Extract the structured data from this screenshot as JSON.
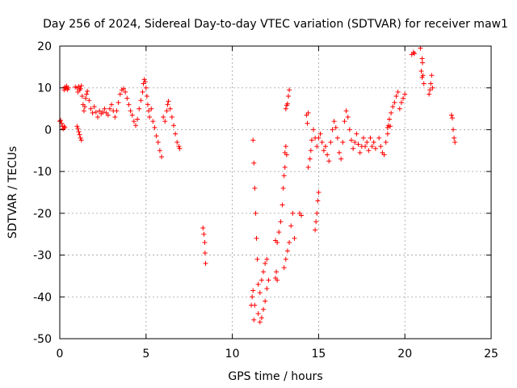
{
  "chart_data": {
    "type": "scatter",
    "title": "Day 256 of 2024, Sidereal Day-to-day VTEC variation (SDTVAR) for receiver maw1",
    "xlabel": "GPS time / hours",
    "ylabel": "SDTVAR / TECUs",
    "xlim": [
      0,
      25
    ],
    "ylim": [
      -50,
      20
    ],
    "xticks": [
      0,
      5,
      10,
      15,
      20,
      25
    ],
    "yticks": [
      -50,
      -40,
      -30,
      -20,
      -10,
      0,
      10,
      20
    ],
    "grid": true,
    "marker": "plus",
    "color": "#ff0000",
    "series": [
      {
        "name": "SDTVAR",
        "points": [
          [
            0.0,
            2.0
          ],
          [
            0.05,
            2.2
          ],
          [
            0.1,
            1.5
          ],
          [
            0.15,
            0.8
          ],
          [
            0.2,
            0.2
          ],
          [
            0.25,
            0.8
          ],
          [
            0.3,
            0.5
          ],
          [
            0.25,
            9.5
          ],
          [
            0.3,
            10.2
          ],
          [
            0.35,
            9.8
          ],
          [
            0.4,
            10.4
          ],
          [
            0.45,
            9.6
          ],
          [
            0.5,
            10.0
          ],
          [
            0.9,
            10.2
          ],
          [
            1.0,
            10.0
          ],
          [
            1.05,
            9.0
          ],
          [
            1.1,
            10.3
          ],
          [
            1.15,
            9.5
          ],
          [
            1.2,
            9.8
          ],
          [
            1.25,
            10.5
          ],
          [
            1.0,
            0.8
          ],
          [
            1.05,
            0.3
          ],
          [
            1.1,
            -0.5
          ],
          [
            1.15,
            -1.2
          ],
          [
            1.2,
            -2.0
          ],
          [
            1.25,
            -2.5
          ],
          [
            1.3,
            8.0
          ],
          [
            1.35,
            6.0
          ],
          [
            1.4,
            4.5
          ],
          [
            1.45,
            5.5
          ],
          [
            1.5,
            7.5
          ],
          [
            1.55,
            8.5
          ],
          [
            1.6,
            9.2
          ],
          [
            1.7,
            7.0
          ],
          [
            1.8,
            5.0
          ],
          [
            1.9,
            4.0
          ],
          [
            2.0,
            5.5
          ],
          [
            2.1,
            4.2
          ],
          [
            2.2,
            3.0
          ],
          [
            2.3,
            4.5
          ],
          [
            2.4,
            3.8
          ],
          [
            2.5,
            4.2
          ],
          [
            2.6,
            5.0
          ],
          [
            2.7,
            4.0
          ],
          [
            2.8,
            3.5
          ],
          [
            2.9,
            5.0
          ],
          [
            3.0,
            6.0
          ],
          [
            3.1,
            4.5
          ],
          [
            3.2,
            3.0
          ],
          [
            3.3,
            4.5
          ],
          [
            3.4,
            6.5
          ],
          [
            3.5,
            8.5
          ],
          [
            3.6,
            9.5
          ],
          [
            3.7,
            9.8
          ],
          [
            3.8,
            9.0
          ],
          [
            3.9,
            7.5
          ],
          [
            4.0,
            6.0
          ],
          [
            4.1,
            4.5
          ],
          [
            4.2,
            3.5
          ],
          [
            4.3,
            2.0
          ],
          [
            4.4,
            1.0
          ],
          [
            4.5,
            2.5
          ],
          [
            4.6,
            5.0
          ],
          [
            4.7,
            7.0
          ],
          [
            4.8,
            9.0
          ],
          [
            4.85,
            11.0
          ],
          [
            4.9,
            12.0
          ],
          [
            4.95,
            11.5
          ],
          [
            5.0,
            10.0
          ],
          [
            5.05,
            8.0
          ],
          [
            5.1,
            6.0
          ],
          [
            5.15,
            4.5
          ],
          [
            5.2,
            3.0
          ],
          [
            5.3,
            5.0
          ],
          [
            5.4,
            2.0
          ],
          [
            5.5,
            0.5
          ],
          [
            5.6,
            -1.5
          ],
          [
            5.7,
            -3.0
          ],
          [
            5.8,
            -5.0
          ],
          [
            5.9,
            -6.5
          ],
          [
            6.0,
            3.0
          ],
          [
            6.1,
            2.0
          ],
          [
            6.2,
            4.5
          ],
          [
            6.25,
            6.0
          ],
          [
            6.3,
            6.8
          ],
          [
            6.4,
            5.0
          ],
          [
            6.5,
            3.0
          ],
          [
            6.6,
            1.0
          ],
          [
            6.7,
            -1.0
          ],
          [
            6.8,
            -3.0
          ],
          [
            6.9,
            -4.0
          ],
          [
            6.95,
            -4.5
          ],
          [
            8.3,
            -23.5
          ],
          [
            8.35,
            -25.0
          ],
          [
            8.4,
            -27.0
          ],
          [
            8.42,
            -29.5
          ],
          [
            8.45,
            -32.0
          ],
          [
            11.1,
            -42.0
          ],
          [
            11.15,
            -40.0
          ],
          [
            11.2,
            -38.5
          ],
          [
            11.25,
            -45.5
          ],
          [
            11.3,
            -42.0
          ],
          [
            11.2,
            -2.5
          ],
          [
            11.25,
            -8.0
          ],
          [
            11.3,
            -14.0
          ],
          [
            11.35,
            -20.0
          ],
          [
            11.4,
            -26.0
          ],
          [
            11.45,
            -31.0
          ],
          [
            11.5,
            -37.0
          ],
          [
            11.5,
            -44.0
          ],
          [
            11.6,
            -46.0
          ],
          [
            11.7,
            -45.0
          ],
          [
            11.8,
            -43.0
          ],
          [
            11.9,
            -41.0
          ],
          [
            12.0,
            -38.0
          ],
          [
            11.6,
            -39.0
          ],
          [
            11.7,
            -36.0
          ],
          [
            11.8,
            -34.0
          ],
          [
            11.9,
            -32.0
          ],
          [
            12.0,
            -31.0
          ],
          [
            12.1,
            -36.0
          ],
          [
            12.5,
            -35.5
          ],
          [
            12.55,
            -34.0
          ],
          [
            12.6,
            -36.0
          ],
          [
            12.5,
            -26.5
          ],
          [
            12.6,
            -27.0
          ],
          [
            12.7,
            -24.5
          ],
          [
            12.8,
            -22.0
          ],
          [
            12.9,
            -18.0
          ],
          [
            12.95,
            -14.0
          ],
          [
            13.0,
            -11.0
          ],
          [
            13.05,
            -9.0
          ],
          [
            13.0,
            -33.0
          ],
          [
            13.1,
            -31.0
          ],
          [
            13.2,
            -29.0
          ],
          [
            13.3,
            -27.0
          ],
          [
            13.4,
            -23.0
          ],
          [
            13.5,
            -20.0
          ],
          [
            13.6,
            -26.0
          ],
          [
            13.05,
            -5.5
          ],
          [
            13.1,
            -4.0
          ],
          [
            13.15,
            -6.0
          ],
          [
            13.1,
            5.0
          ],
          [
            13.15,
            5.8
          ],
          [
            13.2,
            6.2
          ],
          [
            13.25,
            8.0
          ],
          [
            13.3,
            9.5
          ],
          [
            13.9,
            -20.0
          ],
          [
            14.0,
            -20.5
          ],
          [
            14.3,
            3.5
          ],
          [
            14.35,
            1.5
          ],
          [
            14.4,
            4.0
          ],
          [
            14.4,
            -9.0
          ],
          [
            14.5,
            -7.0
          ],
          [
            14.55,
            -5.0
          ],
          [
            14.6,
            -2.5
          ],
          [
            14.7,
            0.0
          ],
          [
            14.8,
            -2.0
          ],
          [
            14.8,
            -24.0
          ],
          [
            14.85,
            -22.0
          ],
          [
            14.9,
            -20.0
          ],
          [
            14.95,
            -17.0
          ],
          [
            15.0,
            -15.0
          ],
          [
            14.9,
            -4.0
          ],
          [
            15.0,
            -2.0
          ],
          [
            15.1,
            -1.0
          ],
          [
            15.2,
            -3.0
          ],
          [
            15.3,
            -5.0
          ],
          [
            15.4,
            -4.0
          ],
          [
            15.5,
            -6.0
          ],
          [
            15.6,
            -7.5
          ],
          [
            15.7,
            -3.0
          ],
          [
            15.8,
            0.0
          ],
          [
            15.9,
            2.0
          ],
          [
            16.0,
            0.5
          ],
          [
            16.1,
            -2.0
          ],
          [
            16.2,
            -5.5
          ],
          [
            16.3,
            -7.0
          ],
          [
            16.4,
            -3.0
          ],
          [
            16.5,
            2.0
          ],
          [
            16.6,
            4.5
          ],
          [
            16.7,
            3.0
          ],
          [
            16.8,
            0.0
          ],
          [
            16.9,
            -2.5
          ],
          [
            17.0,
            -4.5
          ],
          [
            17.1,
            -3.0
          ],
          [
            17.2,
            -1.0
          ],
          [
            17.3,
            -3.5
          ],
          [
            17.4,
            -5.5
          ],
          [
            17.5,
            -4.0
          ],
          [
            17.6,
            -2.0
          ],
          [
            17.7,
            -4.0
          ],
          [
            17.8,
            -3.0
          ],
          [
            17.9,
            -5.0
          ],
          [
            18.0,
            -2.0
          ],
          [
            18.1,
            -4.0
          ],
          [
            18.2,
            -3.0
          ],
          [
            18.3,
            -4.5
          ],
          [
            18.5,
            -2.0
          ],
          [
            18.6,
            -4.0
          ],
          [
            18.7,
            -5.5
          ],
          [
            18.8,
            -6.0
          ],
          [
            18.9,
            -3.0
          ],
          [
            19.0,
            -1.0
          ],
          [
            19.0,
            0.5
          ],
          [
            19.05,
            1.0
          ],
          [
            19.1,
            2.5
          ],
          [
            19.15,
            0.8
          ],
          [
            19.2,
            4.0
          ],
          [
            19.3,
            5.5
          ],
          [
            19.4,
            6.5
          ],
          [
            19.5,
            8.0
          ],
          [
            19.6,
            9.0
          ],
          [
            19.7,
            5.0
          ],
          [
            19.8,
            6.5
          ],
          [
            19.9,
            7.5
          ],
          [
            20.0,
            8.5
          ],
          [
            20.4,
            18.0
          ],
          [
            20.5,
            18.5
          ],
          [
            20.55,
            18.2
          ],
          [
            20.9,
            19.5
          ],
          [
            21.0,
            17.0
          ],
          [
            21.02,
            16.0
          ],
          [
            21.05,
            13.0
          ],
          [
            21.1,
            11.0
          ],
          [
            20.95,
            14.0
          ],
          [
            21.0,
            12.5
          ],
          [
            21.4,
            8.5
          ],
          [
            21.45,
            9.5
          ],
          [
            21.5,
            11.0
          ],
          [
            21.55,
            13.0
          ],
          [
            21.6,
            10.0
          ],
          [
            22.7,
            3.5
          ],
          [
            22.75,
            2.8
          ],
          [
            22.8,
            0.0
          ],
          [
            22.85,
            -2.0
          ],
          [
            22.9,
            -3.0
          ]
        ]
      }
    ]
  }
}
